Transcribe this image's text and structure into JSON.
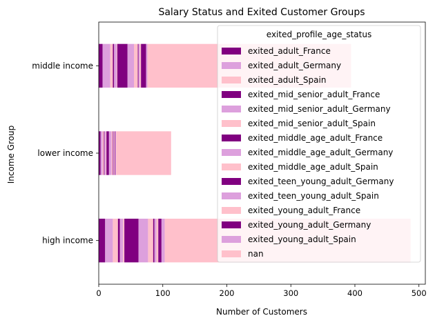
{
  "chart_data": {
    "type": "bar",
    "orientation": "horizontal",
    "stacked": true,
    "title": "Salary Status and Exited Customer Groups",
    "xlabel": "Number of Customers",
    "ylabel": "Income Group",
    "xlim": [
      0,
      510
    ],
    "xticks": [
      0,
      100,
      200,
      300,
      400,
      500
    ],
    "categories": [
      "high income",
      "lower income",
      "middle income"
    ],
    "legend": {
      "title": "exited_profile_age_status",
      "placement": "upper-right"
    },
    "series": [
      {
        "name": "exited_adult_France",
        "color": "#800080",
        "values": [
          10,
          3,
          6
        ]
      },
      {
        "name": "exited_adult_Germany",
        "color": "#dda0dd",
        "values": [
          12,
          3,
          12
        ]
      },
      {
        "name": "exited_adult_Spain",
        "color": "#ffc0cb",
        "values": [
          8,
          2,
          4
        ]
      },
      {
        "name": "exited_mid_senior_adult_France",
        "color": "#800080",
        "values": [
          3,
          1,
          2
        ]
      },
      {
        "name": "exited_mid_senior_adult_Germany",
        "color": "#dda0dd",
        "values": [
          5,
          2,
          4
        ]
      },
      {
        "name": "exited_mid_senior_adult_Spain",
        "color": "#ffc0cb",
        "values": [
          2,
          1,
          1
        ]
      },
      {
        "name": "exited_middle_age_adult_France",
        "color": "#800080",
        "values": [
          22,
          4,
          16
        ]
      },
      {
        "name": "exited_middle_age_adult_Germany",
        "color": "#dda0dd",
        "values": [
          15,
          4,
          10
        ]
      },
      {
        "name": "exited_middle_age_adult_Spain",
        "color": "#ffc0cb",
        "values": [
          8,
          2,
          6
        ]
      },
      {
        "name": "exited_teen_young_adult_Germany",
        "color": "#800080",
        "values": [
          2,
          1,
          1
        ]
      },
      {
        "name": "exited_teen_young_adult_Spain",
        "color": "#dda0dd",
        "values": [
          3,
          1,
          2
        ]
      },
      {
        "name": "exited_young_adult_France",
        "color": "#ffc0cb",
        "values": [
          3,
          1,
          2
        ]
      },
      {
        "name": "exited_young_adult_Germany",
        "color": "#800080",
        "values": [
          5,
          1,
          8
        ]
      },
      {
        "name": "exited_young_adult_Spain",
        "color": "#dda0dd",
        "values": [
          5,
          1,
          2
        ]
      },
      {
        "name": "nan",
        "color": "#ffc0cb",
        "values": [
          384,
          86,
          318
        ]
      }
    ]
  }
}
